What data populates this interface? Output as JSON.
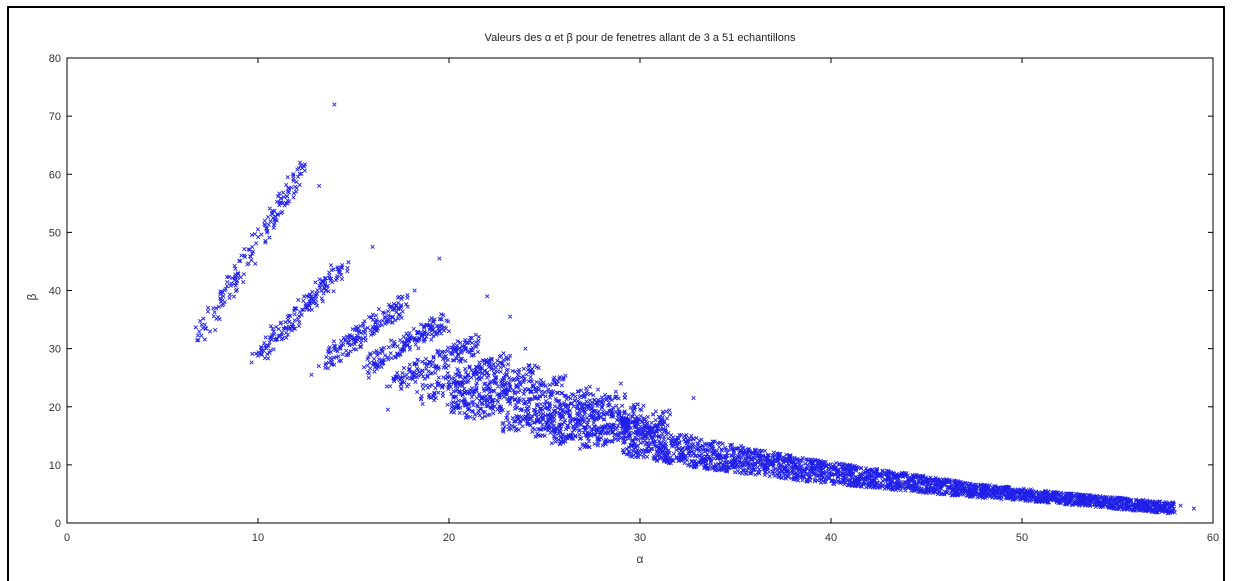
{
  "chart_data": {
    "type": "scatter",
    "title": "Valeurs des α et β pour de fenetres allant de 3 a 51 echantillons",
    "xlabel": "α",
    "ylabel": "β",
    "xlim": [
      0,
      60
    ],
    "ylim": [
      0,
      80
    ],
    "xticks": [
      0,
      10,
      20,
      30,
      40,
      50,
      60
    ],
    "yticks": [
      0,
      10,
      20,
      30,
      40,
      50,
      60,
      70,
      80
    ],
    "grid": false,
    "marker": "x",
    "marker_color": "#2020e8",
    "series": [
      {
        "bands": [
          {
            "x_start": 7.0,
            "x_end": 12.3,
            "y_start": 32,
            "y_end": 61
          },
          {
            "x_start": 10.0,
            "x_end": 14.5,
            "y_start": 29,
            "y_end": 44
          },
          {
            "x_start": 13.5,
            "x_end": 17.8,
            "y_start": 28,
            "y_end": 38
          },
          {
            "x_start": 15.8,
            "x_end": 19.8,
            "y_start": 27,
            "y_end": 35
          },
          {
            "x_start": 17.0,
            "x_end": 21.5,
            "y_start": 24,
            "y_end": 31
          },
          {
            "x_start": 18.5,
            "x_end": 23.0,
            "y_start": 22,
            "y_end": 28
          },
          {
            "x_start": 20.0,
            "x_end": 24.5,
            "y_start": 20,
            "y_end": 26
          },
          {
            "x_start": 21.0,
            "x_end": 26.0,
            "y_start": 19,
            "y_end": 24
          },
          {
            "x_start": 23.0,
            "x_end": 27.5,
            "y_start": 17,
            "y_end": 22
          },
          {
            "x_start": 24.5,
            "x_end": 29.0,
            "y_start": 16,
            "y_end": 21
          },
          {
            "x_start": 25.5,
            "x_end": 30.0,
            "y_start": 15,
            "y_end": 19
          },
          {
            "x_start": 27.0,
            "x_end": 31.5,
            "y_start": 14,
            "y_end": 18
          }
        ],
        "tail": [
          [
            29,
            15.0
          ],
          [
            30,
            14.2
          ],
          [
            31,
            13.5
          ],
          [
            32,
            12.8
          ],
          [
            33,
            12.1
          ],
          [
            34,
            11.5
          ],
          [
            35,
            11.0
          ],
          [
            36,
            10.5
          ],
          [
            37,
            10.0
          ],
          [
            38,
            9.5
          ],
          [
            39,
            9.0
          ],
          [
            40,
            8.6
          ],
          [
            41,
            8.2
          ],
          [
            42,
            7.8
          ],
          [
            43,
            7.4
          ],
          [
            44,
            7.0
          ],
          [
            45,
            6.6
          ],
          [
            46,
            6.2
          ],
          [
            47,
            5.8
          ],
          [
            48,
            5.5
          ],
          [
            49,
            5.2
          ],
          [
            50,
            4.9
          ],
          [
            51,
            4.6
          ],
          [
            52,
            4.3
          ],
          [
            53,
            4.0
          ],
          [
            54,
            3.7
          ],
          [
            55,
            3.4
          ],
          [
            56,
            3.1
          ],
          [
            57,
            2.8
          ],
          [
            58,
            2.6
          ]
        ],
        "outliers": [
          [
            14.0,
            72
          ],
          [
            12.2,
            62
          ],
          [
            13.2,
            58
          ],
          [
            12.0,
            57
          ],
          [
            16.0,
            47.5
          ],
          [
            19.5,
            45.5
          ],
          [
            18.2,
            40
          ],
          [
            22.0,
            39
          ],
          [
            23.2,
            35.5
          ],
          [
            20.0,
            33
          ],
          [
            24.0,
            30
          ],
          [
            32.8,
            21.5
          ],
          [
            29.0,
            24
          ],
          [
            12.8,
            25.5
          ],
          [
            16.8,
            19.5
          ],
          [
            58.3,
            3.0
          ],
          [
            59.0,
            2.5
          ],
          [
            14.8,
            32
          ],
          [
            15.8,
            25
          ],
          [
            10.2,
            29
          ]
        ]
      }
    ]
  }
}
